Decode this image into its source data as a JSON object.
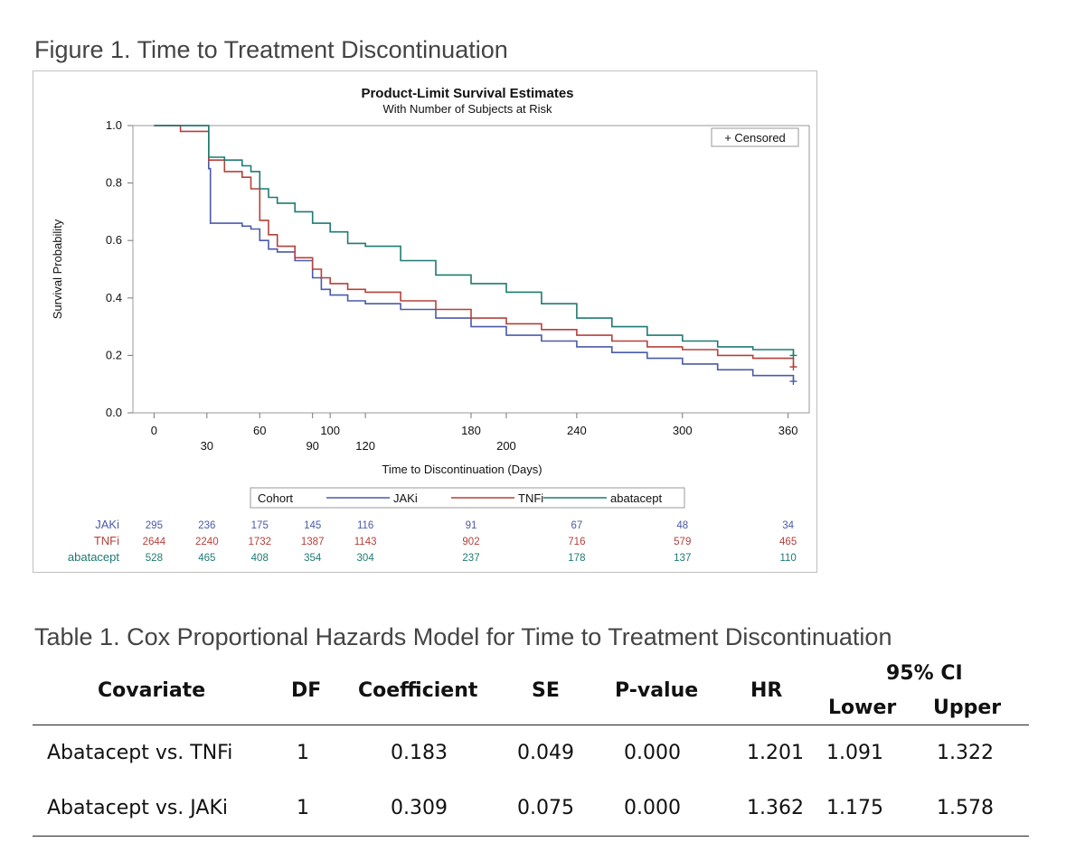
{
  "figure": {
    "caption": "Figure 1. Time to Treatment Discontinuation"
  },
  "chart_data": {
    "type": "line",
    "title": "Product-Limit Survival Estimates",
    "subtitle": "With Number of Subjects at Risk",
    "xlabel": "Time to Discontinuation (Days)",
    "ylabel": "Survival Probability",
    "xlim": [
      -12,
      372
    ],
    "ylim": [
      0,
      1.0
    ],
    "x_ticks_upper": [
      0,
      60,
      100,
      180,
      240,
      300,
      360
    ],
    "x_ticks_lower": [
      30,
      90,
      120,
      200
    ],
    "y_ticks": [
      "0.0",
      "0.2",
      "0.4",
      "0.6",
      "0.8",
      "1.0"
    ],
    "censored_legend": "+ Censored",
    "legend": {
      "title": "Cohort",
      "placement": "bottom",
      "items": [
        "JAKi",
        "TNFi",
        "abatacept"
      ]
    },
    "series": [
      {
        "name": "JAKi",
        "color": "#4a5aa8",
        "x": [
          0,
          30,
          31,
          32,
          40,
          50,
          55,
          60,
          65,
          70,
          80,
          90,
          95,
          100,
          110,
          120,
          140,
          160,
          180,
          200,
          220,
          240,
          260,
          280,
          300,
          320,
          340,
          363
        ],
        "y": [
          1.0,
          1.0,
          0.85,
          0.66,
          0.66,
          0.65,
          0.64,
          0.6,
          0.57,
          0.56,
          0.53,
          0.47,
          0.43,
          0.41,
          0.39,
          0.38,
          0.36,
          0.33,
          0.3,
          0.27,
          0.25,
          0.23,
          0.21,
          0.19,
          0.17,
          0.15,
          0.13,
          0.11
        ],
        "at_risk": [
          295,
          236,
          175,
          145,
          116,
          91,
          67,
          48,
          34
        ]
      },
      {
        "name": "TNFi",
        "color": "#b5403a",
        "x": [
          0,
          15,
          30,
          31,
          40,
          50,
          55,
          60,
          65,
          70,
          80,
          90,
          95,
          100,
          110,
          120,
          140,
          160,
          180,
          200,
          220,
          240,
          260,
          280,
          300,
          320,
          340,
          363
        ],
        "y": [
          1.0,
          0.98,
          0.98,
          0.88,
          0.84,
          0.82,
          0.78,
          0.67,
          0.62,
          0.58,
          0.54,
          0.5,
          0.47,
          0.45,
          0.43,
          0.42,
          0.39,
          0.36,
          0.33,
          0.31,
          0.29,
          0.27,
          0.25,
          0.23,
          0.22,
          0.2,
          0.19,
          0.16
        ],
        "at_risk": [
          2644,
          2240,
          1732,
          1387,
          1143,
          902,
          716,
          579,
          465
        ]
      },
      {
        "name": "abatacept",
        "color": "#1f7a72",
        "x": [
          0,
          30,
          31,
          40,
          50,
          55,
          60,
          65,
          70,
          80,
          90,
          100,
          110,
          120,
          140,
          160,
          180,
          200,
          220,
          240,
          260,
          280,
          300,
          320,
          340,
          363
        ],
        "y": [
          1.0,
          1.0,
          0.89,
          0.88,
          0.86,
          0.84,
          0.78,
          0.75,
          0.73,
          0.7,
          0.66,
          0.63,
          0.59,
          0.58,
          0.53,
          0.48,
          0.45,
          0.42,
          0.38,
          0.33,
          0.3,
          0.27,
          0.25,
          0.23,
          0.22,
          0.2
        ],
        "at_risk": [
          528,
          465,
          408,
          354,
          304,
          237,
          178,
          137,
          110
        ]
      }
    ],
    "at_risk_times": [
      0,
      30,
      60,
      90,
      120,
      180,
      240,
      300,
      360
    ]
  },
  "table": {
    "caption": "Table 1. Cox Proportional Hazards Model for Time to Treatment Discontinuation",
    "headers": {
      "covariate": "Covariate",
      "df": "DF",
      "coefficient": "Coefficient",
      "se": "SE",
      "pvalue": "P-value",
      "hr": "HR",
      "ci": "95% CI",
      "lower": "Lower",
      "upper": "Upper"
    },
    "rows": [
      {
        "covariate": "Abatacept vs. TNFi",
        "df": "1",
        "coefficient": "0.183",
        "se": "0.049",
        "pvalue": "0.000",
        "hr": "1.201",
        "lower": "1.091",
        "upper": "1.322"
      },
      {
        "covariate": "Abatacept vs. JAKi",
        "df": "1",
        "coefficient": "0.309",
        "se": "0.075",
        "pvalue": "0.000",
        "hr": "1.362",
        "lower": "1.175",
        "upper": "1.578"
      }
    ]
  }
}
